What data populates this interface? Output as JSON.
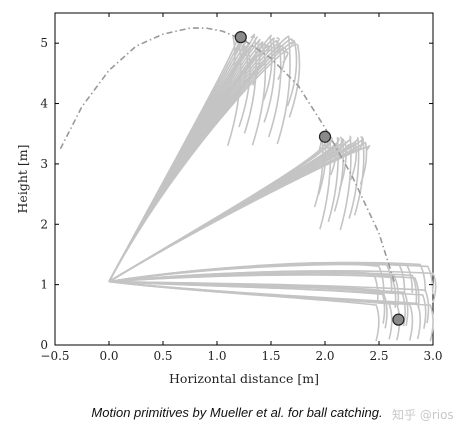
{
  "caption": "Motion primitives by Mueller et al. for ball catching.",
  "watermark": "知乎 @rios",
  "chart_data": {
    "type": "line",
    "title": "",
    "xlabel": "Horizontal distance [m]",
    "ylabel": "Height [m]",
    "xlim": [
      -0.5,
      3.0
    ],
    "ylim": [
      0,
      5.5
    ],
    "xticks": [
      "−0.5",
      "0.0",
      "0.5",
      "1.0",
      "1.5",
      "2.0",
      "2.5",
      "3.0"
    ],
    "xtick_values": [
      -0.5,
      0.0,
      0.5,
      1.0,
      1.5,
      2.0,
      2.5,
      3.0
    ],
    "yticks": [
      "0",
      "1",
      "2",
      "3",
      "4",
      "5"
    ],
    "ytick_values": [
      0,
      1,
      2,
      3,
      4,
      5
    ],
    "grid": false,
    "colors": {
      "ball_path": "#999999",
      "primitives": "#c4c4c4",
      "catch_marker": "#8a8a8a"
    },
    "ball_trajectory": {
      "style": "dash-dot",
      "x": [
        -0.45,
        -0.25,
        0.0,
        0.25,
        0.5,
        0.75,
        0.9,
        1.05,
        1.25,
        1.5,
        1.75,
        2.0,
        2.25,
        2.5,
        2.65
      ],
      "y": [
        3.25,
        3.95,
        4.55,
        4.95,
        5.15,
        5.25,
        5.25,
        5.2,
        5.05,
        4.75,
        4.3,
        3.6,
        2.8,
        1.85,
        1.0
      ]
    },
    "catch_points": [
      {
        "x": 1.22,
        "y": 5.1
      },
      {
        "x": 2.0,
        "y": 3.45
      },
      {
        "x": 2.68,
        "y": 0.42
      }
    ],
    "primitive_start": {
      "x": 0.0,
      "y": 1.05
    },
    "primitive_groups": [
      {
        "target": {
          "x": 1.22,
          "y": 5.1
        },
        "count": 22,
        "tip_x": [
          1.15,
          1.75
        ],
        "end_y": [
          3.3,
          5.1
        ]
      },
      {
        "target": {
          "x": 2.0,
          "y": 3.45
        },
        "count": 20,
        "tip_x": [
          1.95,
          2.4
        ],
        "end_y": [
          1.9,
          3.45
        ]
      },
      {
        "target": {
          "x": 2.68,
          "y": 0.42
        },
        "count": 24,
        "tip_x": [
          2.45,
          3.0
        ],
        "end_y": [
          0.05,
          0.9
        ]
      }
    ]
  }
}
